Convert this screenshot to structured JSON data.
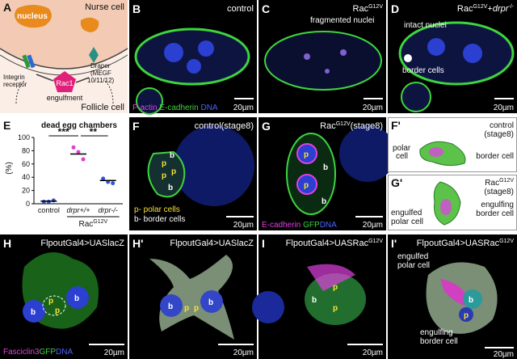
{
  "chart_data": {
    "type": "dotplot",
    "letter": "E",
    "title": "dead egg chambers",
    "ylabel": "(%)",
    "categories": [
      "control",
      "drpr+/+",
      "drpr-/-"
    ],
    "points": [
      [
        3,
        3,
        5
      ],
      [
        85,
        78,
        67
      ],
      [
        38,
        33,
        31
      ]
    ],
    "means": [
      4,
      75,
      35
    ],
    "colors": [
      "#3654d6",
      "#e03fd0",
      "#3654d6"
    ],
    "ylim": [
      0,
      100
    ],
    "yticks": [
      0,
      20,
      40,
      60,
      80,
      100
    ],
    "significance": [
      "***",
      "**"
    ],
    "group_label": [
      {
        "t": "Rac"
      },
      {
        "t": "G12V",
        "sup": true
      }
    ]
  },
  "a": {
    "letter": "A",
    "nurse_cell": "Nurse cell",
    "nucleus": "nucleus",
    "integrin": [
      "Integrin",
      "receptor"
    ],
    "draper": [
      "Draper",
      "(MEGF",
      "10/11/12)"
    ],
    "rac1": "Rac1",
    "engulfment": "engulfment",
    "follicle_cell": "Follicle cell"
  },
  "b": {
    "letter": "B",
    "title": "control",
    "stain": [
      "F-actin",
      "E-cadherin",
      "DNA"
    ],
    "scale": "20µm"
  },
  "c": {
    "letter": "C",
    "title": [
      {
        "t": "Rac"
      },
      {
        "t": "G12V",
        "sup": true
      }
    ],
    "annotation": "fragmented nuclei",
    "scale": "20µm"
  },
  "d": {
    "letter": "D",
    "title": [
      {
        "t": "Rac"
      },
      {
        "t": "G12V",
        "sup": true
      },
      {
        "t": "+"
      },
      {
        "t": "drpr"
      },
      {
        "t": "-/-",
        "sup": true
      }
    ],
    "intact": "intact nuclei",
    "border": "border cells",
    "scale": "20µm"
  },
  "f": {
    "letter": "F",
    "title": "control(stage8)",
    "legend": [
      "p- polar cells",
      "b- border cells"
    ],
    "cells": [
      "p",
      "p",
      "p",
      "b",
      "b"
    ],
    "scale": "20µm"
  },
  "g": {
    "letter": "G",
    "title": [
      {
        "t": "Rac"
      },
      {
        "t": "G12V",
        "sup": true
      },
      {
        "t": "(stage8)"
      }
    ],
    "cells": [
      "p",
      "p",
      "b",
      "b"
    ],
    "stain": [
      "E-cadherin",
      "GFP",
      "DNA"
    ],
    "scale": "20µm"
  },
  "f_prime": {
    "letter": "F'",
    "title": [
      "control",
      "(stage8)"
    ],
    "polar": [
      "polar",
      "cell"
    ],
    "border": "border cell"
  },
  "g_prime": {
    "letter": "G'",
    "title": [
      {
        "t": "Rac"
      },
      {
        "t": "G12V",
        "sup": true
      }
    ],
    "stage": "(stage8)",
    "engulfed": [
      "engulfed",
      "polar cell"
    ],
    "engulfing": [
      "engulfing",
      "border cell"
    ]
  },
  "h": {
    "letter": "H",
    "title": "FlpoutGal4>UASlacZ",
    "cells": [
      "b",
      "p",
      "p",
      "b"
    ],
    "stain": [
      "Fasciclin3",
      "GFP",
      "DNA"
    ],
    "scale": "20µm"
  },
  "h_prime": {
    "letter": "H'",
    "title": "FlpoutGal4>UASlacZ",
    "cells": [
      "b",
      "p",
      "p",
      "b"
    ],
    "scale": "20µm"
  },
  "i": {
    "letter": "I",
    "title": [
      {
        "t": "FlpoutGal4>UASRac"
      },
      {
        "t": "G12V",
        "sup": true
      }
    ],
    "cells": [
      "b",
      "p",
      "p"
    ],
    "scale": "20µm"
  },
  "i_prime": {
    "letter": "I'",
    "title": [
      {
        "t": "FlpoutGal4>UASRac"
      },
      {
        "t": "G12V",
        "sup": true
      }
    ],
    "engulfed": [
      "engulfed",
      "polar cell"
    ],
    "engulfing": [
      "engulfing",
      "border cell"
    ],
    "cells": [
      "b",
      "p"
    ],
    "scale": "20µm"
  }
}
